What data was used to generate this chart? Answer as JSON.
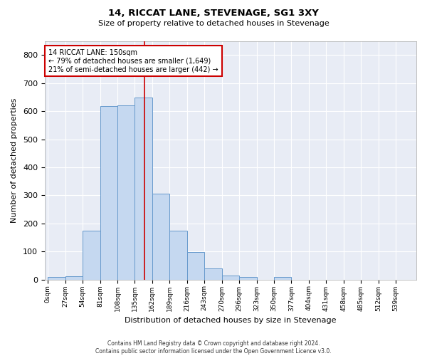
{
  "title": "14, RICCAT LANE, STEVENAGE, SG1 3XY",
  "subtitle": "Size of property relative to detached houses in Stevenage",
  "xlabel": "Distribution of detached houses by size in Stevenage",
  "ylabel": "Number of detached properties",
  "bar_color": "#c5d8f0",
  "bar_edge_color": "#6699cc",
  "background_color": "#e8ecf5",
  "grid_color": "#ffffff",
  "bin_labels": [
    "0sqm",
    "27sqm",
    "54sqm",
    "81sqm",
    "108sqm",
    "135sqm",
    "162sqm",
    "189sqm",
    "216sqm",
    "243sqm",
    "270sqm",
    "296sqm",
    "323sqm",
    "350sqm",
    "377sqm",
    "404sqm",
    "431sqm",
    "458sqm",
    "485sqm",
    "512sqm",
    "539sqm"
  ],
  "bin_values": [
    8,
    13,
    175,
    618,
    620,
    648,
    305,
    175,
    98,
    40,
    15,
    10,
    0,
    8,
    0,
    0,
    0,
    0,
    0,
    0,
    0
  ],
  "ylim": [
    0,
    850
  ],
  "yticks": [
    0,
    100,
    200,
    300,
    400,
    500,
    600,
    700,
    800
  ],
  "bin_width": 27,
  "vline_x": 150,
  "vline_color": "#cc0000",
  "annotation_text_line1": "14 RICCAT LANE: 150sqm",
  "annotation_text_line2": "← 79% of detached houses are smaller (1,649)",
  "annotation_text_line3": "21% of semi-detached houses are larger (442) →",
  "annotation_box_facecolor": "#ffffff",
  "annotation_box_edgecolor": "#cc0000",
  "fig_facecolor": "#ffffff",
  "footer_line1": "Contains HM Land Registry data © Crown copyright and database right 2024.",
  "footer_line2": "Contains public sector information licensed under the Open Government Licence v3.0."
}
